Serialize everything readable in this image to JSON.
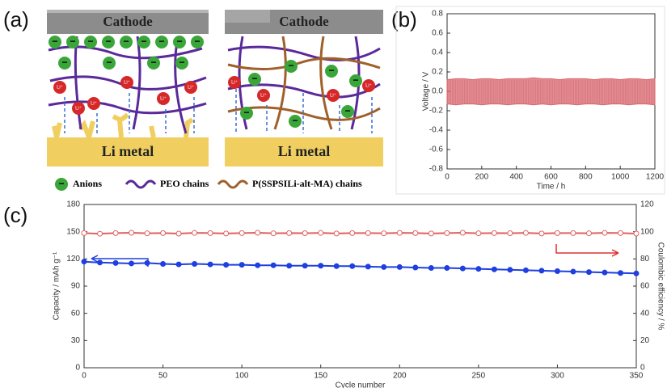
{
  "panels": [
    "(a)",
    "(b)",
    "(c)"
  ],
  "diagram": {
    "cathode": "Cathode",
    "anode": "Li metal",
    "ion": "Li⁺",
    "anion_symbol": "−",
    "legend": [
      "Anions",
      "PEO chains",
      "P(SSPSILi-alt-MA) chains"
    ]
  },
  "chart_data": [
    {
      "type": "band",
      "xlabel": "Time / h",
      "ylabel": "Voltage / V",
      "x": [
        0,
        50,
        100,
        150,
        200,
        250,
        300,
        350,
        400,
        450,
        500,
        550,
        600,
        650,
        700,
        750,
        800,
        850,
        900,
        950,
        1000,
        1050,
        1100,
        1150,
        1200
      ],
      "series": [
        {
          "color": "#d9676e",
          "values": [
            0.12,
            0.13,
            0.13,
            0.12,
            0.13,
            0.13,
            0.12,
            0.13,
            0.13,
            0.13,
            0.14,
            0.13,
            0.13,
            0.12,
            0.13,
            0.13,
            0.13,
            0.12,
            0.13,
            0.13,
            0.12,
            0.13,
            0.13,
            0.12,
            0.13
          ]
        },
        {
          "color": "#d9676e",
          "values": [
            -0.13,
            -0.14,
            -0.13,
            -0.13,
            -0.14,
            -0.13,
            -0.13,
            -0.14,
            -0.13,
            -0.13,
            -0.14,
            -0.13,
            -0.14,
            -0.13,
            -0.13,
            -0.14,
            -0.13,
            -0.13,
            -0.14,
            -0.13,
            -0.13,
            -0.14,
            -0.13,
            -0.13,
            -0.14
          ]
        }
      ],
      "xlim": [
        0,
        1200
      ],
      "xticks": [
        0,
        200,
        400,
        600,
        800,
        1000,
        1200
      ],
      "ylim": [
        -0.8,
        0.8
      ],
      "yticks": [
        -0.8,
        -0.6,
        -0.4,
        -0.2,
        {
          "value": 0,
          "label": "0.0"
        },
        0.2,
        0.4,
        0.6,
        0.8
      ]
    },
    {
      "type": "line",
      "xlabel": "Cycle number",
      "ylabel": "Capacity / mAh g⁻¹",
      "y2label": "Coulombic efficiency / %",
      "x": [
        0,
        10,
        20,
        30,
        40,
        50,
        60,
        70,
        80,
        90,
        100,
        110,
        120,
        130,
        140,
        150,
        160,
        170,
        180,
        190,
        200,
        210,
        220,
        230,
        240,
        250,
        260,
        270,
        280,
        290,
        300,
        310,
        320,
        330,
        340,
        350
      ],
      "series": [
        {
          "color": "#1f3fe0",
          "values": [
            117,
            116,
            115.5,
            115,
            115.5,
            114.5,
            114,
            114.5,
            114,
            113.5,
            113.5,
            113,
            113,
            112.5,
            112.5,
            112.5,
            112,
            112,
            111.5,
            111,
            111,
            110.5,
            110,
            110,
            109.5,
            109,
            108.5,
            108,
            107.5,
            107,
            106.5,
            106,
            105.5,
            105,
            104.5,
            104
          ]
        },
        {
          "color": "#e06060",
          "axis": "y2",
          "values": [
            99,
            98.5,
            99,
            99.2,
            98.8,
            99,
            98.6,
            99.1,
            99,
            98.7,
            99,
            99.2,
            98.8,
            99,
            98.9,
            99.1,
            98.7,
            99,
            99,
            98.8,
            99.1,
            99,
            98.7,
            99,
            99.2,
            98.8,
            99,
            98.9,
            99.1,
            98.7,
            99,
            99,
            98.8,
            99.1,
            99,
            98.6
          ]
        }
      ],
      "xlim": [
        0,
        350
      ],
      "xticks": [
        0,
        50,
        100,
        150,
        200,
        250,
        300,
        350
      ],
      "ylim": [
        0,
        180
      ],
      "yticks": [
        0,
        30,
        60,
        90,
        120,
        150,
        180
      ],
      "y2lim": [
        0,
        120
      ],
      "y2ticks": [
        0,
        20,
        40,
        60,
        80,
        100,
        120
      ]
    }
  ]
}
